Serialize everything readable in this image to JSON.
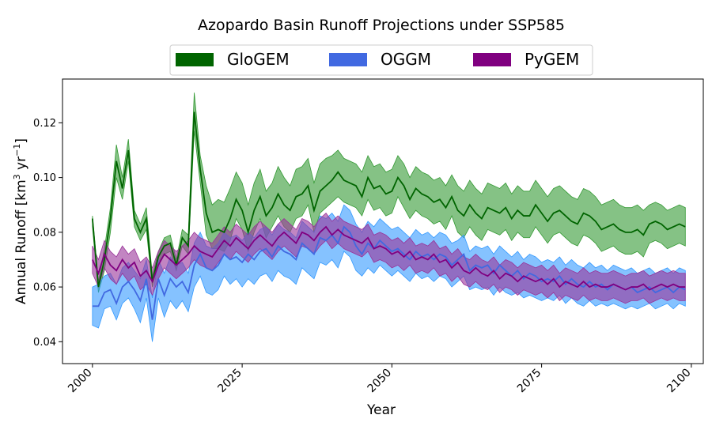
{
  "chart_data": {
    "type": "area",
    "title": "Azopardo Basin Runoff Projections under SSP585",
    "xlabel": "Year",
    "ylabel_main": "Annual Runoff [km",
    "ylabel_sup1": "3",
    "ylabel_mid": " yr",
    "ylabel_sup2": "−1",
    "ylabel_end": "]",
    "xlim": [
      1995,
      2102
    ],
    "ylim": [
      0.032,
      0.136
    ],
    "x_ticks": [
      2000,
      2025,
      2050,
      2075,
      2100
    ],
    "x_tick_labels": [
      "2000",
      "2025",
      "2050",
      "2075",
      "2100"
    ],
    "y_ticks": [
      0.04,
      0.06,
      0.08,
      0.1,
      0.12
    ],
    "y_tick_labels": [
      "0.04",
      "0.06",
      "0.08",
      "0.10",
      "0.12"
    ],
    "legend_position": "top-center",
    "x": [
      2000,
      2001,
      2002,
      2003,
      2004,
      2005,
      2006,
      2007,
      2008,
      2009,
      2010,
      2011,
      2012,
      2013,
      2014,
      2015,
      2016,
      2017,
      2018,
      2019,
      2020,
      2021,
      2022,
      2023,
      2024,
      2025,
      2026,
      2027,
      2028,
      2029,
      2030,
      2031,
      2032,
      2033,
      2034,
      2035,
      2036,
      2037,
      2038,
      2039,
      2040,
      2041,
      2042,
      2043,
      2044,
      2045,
      2046,
      2047,
      2048,
      2049,
      2050,
      2051,
      2052,
      2053,
      2054,
      2055,
      2056,
      2057,
      2058,
      2059,
      2060,
      2061,
      2062,
      2063,
      2064,
      2065,
      2066,
      2067,
      2068,
      2069,
      2070,
      2071,
      2072,
      2073,
      2074,
      2075,
      2076,
      2077,
      2078,
      2079,
      2080,
      2081,
      2082,
      2083,
      2084,
      2085,
      2086,
      2087,
      2088,
      2089,
      2090,
      2091,
      2092,
      2093,
      2094,
      2095,
      2096,
      2097,
      2098,
      2099
    ],
    "series": [
      {
        "name": "GloGEM",
        "line_color": "#006400",
        "fill_color": "#339933",
        "mean": [
          0.085,
          0.06,
          0.07,
          0.085,
          0.106,
          0.096,
          0.11,
          0.085,
          0.08,
          0.085,
          0.062,
          0.071,
          0.075,
          0.076,
          0.068,
          0.078,
          0.075,
          0.124,
          0.103,
          0.087,
          0.08,
          0.081,
          0.08,
          0.085,
          0.092,
          0.088,
          0.08,
          0.088,
          0.093,
          0.086,
          0.089,
          0.094,
          0.09,
          0.088,
          0.093,
          0.094,
          0.097,
          0.088,
          0.095,
          0.097,
          0.099,
          0.102,
          0.099,
          0.098,
          0.097,
          0.093,
          0.1,
          0.096,
          0.097,
          0.094,
          0.095,
          0.1,
          0.097,
          0.092,
          0.096,
          0.094,
          0.093,
          0.091,
          0.092,
          0.089,
          0.093,
          0.088,
          0.086,
          0.09,
          0.087,
          0.085,
          0.089,
          0.088,
          0.087,
          0.089,
          0.085,
          0.088,
          0.086,
          0.086,
          0.09,
          0.087,
          0.084,
          0.087,
          0.088,
          0.086,
          0.084,
          0.083,
          0.087,
          0.086,
          0.084,
          0.081,
          0.082,
          0.083,
          0.081,
          0.08,
          0.08,
          0.081,
          0.079,
          0.083,
          0.084,
          0.083,
          0.081,
          0.082,
          0.083,
          0.082
        ],
        "lower": [
          0.082,
          0.058,
          0.066,
          0.08,
          0.1,
          0.092,
          0.106,
          0.082,
          0.077,
          0.081,
          0.06,
          0.069,
          0.072,
          0.073,
          0.066,
          0.075,
          0.072,
          0.117,
          0.098,
          0.079,
          0.074,
          0.074,
          0.073,
          0.077,
          0.085,
          0.081,
          0.073,
          0.08,
          0.085,
          0.078,
          0.082,
          0.086,
          0.082,
          0.08,
          0.085,
          0.086,
          0.09,
          0.08,
          0.087,
          0.089,
          0.091,
          0.093,
          0.091,
          0.09,
          0.089,
          0.086,
          0.092,
          0.088,
          0.089,
          0.086,
          0.087,
          0.093,
          0.089,
          0.085,
          0.088,
          0.086,
          0.085,
          0.083,
          0.084,
          0.081,
          0.086,
          0.08,
          0.078,
          0.082,
          0.079,
          0.077,
          0.081,
          0.08,
          0.079,
          0.081,
          0.077,
          0.08,
          0.078,
          0.078,
          0.082,
          0.079,
          0.076,
          0.079,
          0.08,
          0.078,
          0.076,
          0.075,
          0.079,
          0.078,
          0.076,
          0.073,
          0.074,
          0.075,
          0.073,
          0.072,
          0.072,
          0.073,
          0.071,
          0.076,
          0.077,
          0.076,
          0.074,
          0.075,
          0.076,
          0.075
        ],
        "upper": [
          0.086,
          0.062,
          0.074,
          0.089,
          0.112,
          0.1,
          0.114,
          0.088,
          0.083,
          0.089,
          0.064,
          0.073,
          0.078,
          0.079,
          0.07,
          0.081,
          0.079,
          0.131,
          0.108,
          0.097,
          0.09,
          0.092,
          0.091,
          0.096,
          0.102,
          0.098,
          0.09,
          0.098,
          0.103,
          0.095,
          0.098,
          0.104,
          0.1,
          0.097,
          0.103,
          0.104,
          0.107,
          0.098,
          0.105,
          0.107,
          0.108,
          0.11,
          0.107,
          0.106,
          0.105,
          0.102,
          0.108,
          0.104,
          0.105,
          0.102,
          0.103,
          0.108,
          0.105,
          0.1,
          0.104,
          0.102,
          0.101,
          0.099,
          0.1,
          0.097,
          0.101,
          0.097,
          0.095,
          0.099,
          0.096,
          0.094,
          0.098,
          0.097,
          0.096,
          0.098,
          0.094,
          0.097,
          0.095,
          0.095,
          0.099,
          0.096,
          0.093,
          0.096,
          0.097,
          0.095,
          0.093,
          0.092,
          0.096,
          0.095,
          0.093,
          0.09,
          0.091,
          0.092,
          0.09,
          0.089,
          0.089,
          0.09,
          0.088,
          0.09,
          0.091,
          0.09,
          0.088,
          0.089,
          0.09,
          0.089
        ]
      },
      {
        "name": "OGGM",
        "line_color": "#4169e1",
        "fill_color": "#3399ff",
        "mean": [
          0.053,
          0.053,
          0.058,
          0.059,
          0.054,
          0.06,
          0.062,
          0.059,
          0.055,
          0.063,
          0.048,
          0.063,
          0.057,
          0.063,
          0.06,
          0.062,
          0.058,
          0.068,
          0.072,
          0.067,
          0.066,
          0.068,
          0.072,
          0.07,
          0.071,
          0.069,
          0.072,
          0.07,
          0.073,
          0.074,
          0.071,
          0.075,
          0.073,
          0.072,
          0.07,
          0.076,
          0.074,
          0.072,
          0.078,
          0.077,
          0.079,
          0.076,
          0.082,
          0.08,
          0.075,
          0.072,
          0.076,
          0.074,
          0.077,
          0.075,
          0.073,
          0.074,
          0.072,
          0.07,
          0.073,
          0.071,
          0.072,
          0.07,
          0.072,
          0.071,
          0.068,
          0.07,
          0.072,
          0.066,
          0.068,
          0.067,
          0.068,
          0.065,
          0.068,
          0.066,
          0.064,
          0.066,
          0.063,
          0.065,
          0.064,
          0.062,
          0.063,
          0.062,
          0.064,
          0.061,
          0.063,
          0.061,
          0.06,
          0.062,
          0.06,
          0.061,
          0.059,
          0.061,
          0.06,
          0.059,
          0.06,
          0.058,
          0.059,
          0.06,
          0.058,
          0.059,
          0.06,
          0.058,
          0.06,
          0.059
        ],
        "lower": [
          0.046,
          0.045,
          0.052,
          0.053,
          0.048,
          0.054,
          0.056,
          0.052,
          0.047,
          0.056,
          0.04,
          0.056,
          0.049,
          0.055,
          0.052,
          0.055,
          0.051,
          0.06,
          0.064,
          0.058,
          0.057,
          0.059,
          0.064,
          0.061,
          0.063,
          0.06,
          0.063,
          0.061,
          0.064,
          0.065,
          0.062,
          0.066,
          0.064,
          0.063,
          0.061,
          0.067,
          0.065,
          0.063,
          0.069,
          0.068,
          0.07,
          0.067,
          0.073,
          0.071,
          0.066,
          0.064,
          0.067,
          0.065,
          0.068,
          0.066,
          0.064,
          0.066,
          0.064,
          0.062,
          0.065,
          0.063,
          0.064,
          0.062,
          0.064,
          0.063,
          0.06,
          0.062,
          0.064,
          0.059,
          0.06,
          0.059,
          0.06,
          0.057,
          0.06,
          0.058,
          0.057,
          0.058,
          0.056,
          0.057,
          0.056,
          0.055,
          0.056,
          0.055,
          0.057,
          0.054,
          0.056,
          0.054,
          0.053,
          0.055,
          0.053,
          0.054,
          0.053,
          0.054,
          0.053,
          0.052,
          0.053,
          0.052,
          0.053,
          0.054,
          0.052,
          0.053,
          0.054,
          0.052,
          0.054,
          0.053
        ],
        "upper": [
          0.06,
          0.061,
          0.064,
          0.065,
          0.061,
          0.067,
          0.069,
          0.066,
          0.063,
          0.07,
          0.056,
          0.07,
          0.065,
          0.071,
          0.068,
          0.069,
          0.065,
          0.076,
          0.08,
          0.075,
          0.074,
          0.076,
          0.08,
          0.078,
          0.079,
          0.077,
          0.08,
          0.078,
          0.081,
          0.082,
          0.079,
          0.083,
          0.081,
          0.08,
          0.078,
          0.084,
          0.082,
          0.08,
          0.086,
          0.085,
          0.087,
          0.084,
          0.09,
          0.088,
          0.083,
          0.08,
          0.084,
          0.082,
          0.085,
          0.083,
          0.081,
          0.082,
          0.08,
          0.078,
          0.081,
          0.079,
          0.08,
          0.078,
          0.08,
          0.079,
          0.076,
          0.077,
          0.079,
          0.073,
          0.075,
          0.074,
          0.075,
          0.072,
          0.075,
          0.073,
          0.071,
          0.073,
          0.07,
          0.072,
          0.071,
          0.069,
          0.07,
          0.069,
          0.071,
          0.068,
          0.07,
          0.068,
          0.067,
          0.069,
          0.067,
          0.068,
          0.066,
          0.068,
          0.067,
          0.066,
          0.067,
          0.065,
          0.066,
          0.067,
          0.065,
          0.066,
          0.067,
          0.065,
          0.067,
          0.066
        ]
      },
      {
        "name": "PyGEM",
        "line_color": "#800080",
        "fill_color": "#993399",
        "mean": [
          0.07,
          0.065,
          0.072,
          0.068,
          0.066,
          0.07,
          0.067,
          0.069,
          0.064,
          0.066,
          0.062,
          0.068,
          0.072,
          0.07,
          0.068,
          0.07,
          0.072,
          0.075,
          0.073,
          0.072,
          0.071,
          0.074,
          0.077,
          0.075,
          0.078,
          0.076,
          0.074,
          0.077,
          0.079,
          0.077,
          0.075,
          0.078,
          0.08,
          0.078,
          0.076,
          0.08,
          0.079,
          0.077,
          0.08,
          0.082,
          0.079,
          0.081,
          0.079,
          0.078,
          0.077,
          0.076,
          0.078,
          0.074,
          0.075,
          0.074,
          0.072,
          0.073,
          0.071,
          0.073,
          0.07,
          0.071,
          0.07,
          0.072,
          0.069,
          0.07,
          0.067,
          0.069,
          0.066,
          0.065,
          0.067,
          0.065,
          0.064,
          0.066,
          0.063,
          0.065,
          0.064,
          0.062,
          0.064,
          0.063,
          0.062,
          0.063,
          0.061,
          0.063,
          0.06,
          0.062,
          0.061,
          0.06,
          0.062,
          0.06,
          0.061,
          0.06,
          0.06,
          0.061,
          0.06,
          0.059,
          0.06,
          0.06,
          0.061,
          0.059,
          0.06,
          0.061,
          0.06,
          0.061,
          0.06,
          0.06
        ],
        "lower": [
          0.065,
          0.06,
          0.067,
          0.063,
          0.061,
          0.065,
          0.062,
          0.064,
          0.059,
          0.061,
          0.057,
          0.063,
          0.067,
          0.065,
          0.063,
          0.065,
          0.067,
          0.07,
          0.068,
          0.067,
          0.066,
          0.069,
          0.072,
          0.07,
          0.073,
          0.071,
          0.069,
          0.072,
          0.074,
          0.072,
          0.07,
          0.073,
          0.075,
          0.073,
          0.071,
          0.075,
          0.074,
          0.072,
          0.075,
          0.077,
          0.074,
          0.076,
          0.074,
          0.073,
          0.072,
          0.071,
          0.073,
          0.069,
          0.07,
          0.069,
          0.067,
          0.068,
          0.066,
          0.068,
          0.065,
          0.066,
          0.065,
          0.067,
          0.064,
          0.065,
          0.062,
          0.064,
          0.061,
          0.06,
          0.062,
          0.06,
          0.059,
          0.061,
          0.058,
          0.06,
          0.059,
          0.057,
          0.059,
          0.058,
          0.057,
          0.058,
          0.056,
          0.058,
          0.055,
          0.057,
          0.056,
          0.055,
          0.057,
          0.055,
          0.056,
          0.055,
          0.055,
          0.056,
          0.055,
          0.054,
          0.055,
          0.055,
          0.056,
          0.054,
          0.055,
          0.056,
          0.055,
          0.056,
          0.055,
          0.055
        ],
        "upper": [
          0.075,
          0.07,
          0.077,
          0.073,
          0.071,
          0.075,
          0.072,
          0.074,
          0.069,
          0.071,
          0.067,
          0.073,
          0.077,
          0.075,
          0.073,
          0.075,
          0.077,
          0.08,
          0.078,
          0.077,
          0.076,
          0.079,
          0.082,
          0.08,
          0.083,
          0.081,
          0.079,
          0.082,
          0.084,
          0.082,
          0.08,
          0.083,
          0.085,
          0.083,
          0.081,
          0.085,
          0.084,
          0.082,
          0.085,
          0.087,
          0.084,
          0.086,
          0.084,
          0.083,
          0.082,
          0.081,
          0.083,
          0.079,
          0.08,
          0.079,
          0.077,
          0.078,
          0.076,
          0.078,
          0.075,
          0.076,
          0.075,
          0.077,
          0.074,
          0.075,
          0.072,
          0.074,
          0.071,
          0.07,
          0.072,
          0.07,
          0.069,
          0.071,
          0.068,
          0.07,
          0.069,
          0.067,
          0.069,
          0.068,
          0.067,
          0.068,
          0.066,
          0.068,
          0.065,
          0.067,
          0.066,
          0.065,
          0.067,
          0.065,
          0.066,
          0.065,
          0.065,
          0.066,
          0.065,
          0.064,
          0.065,
          0.065,
          0.066,
          0.064,
          0.065,
          0.066,
          0.065,
          0.066,
          0.065,
          0.065
        ]
      }
    ]
  }
}
